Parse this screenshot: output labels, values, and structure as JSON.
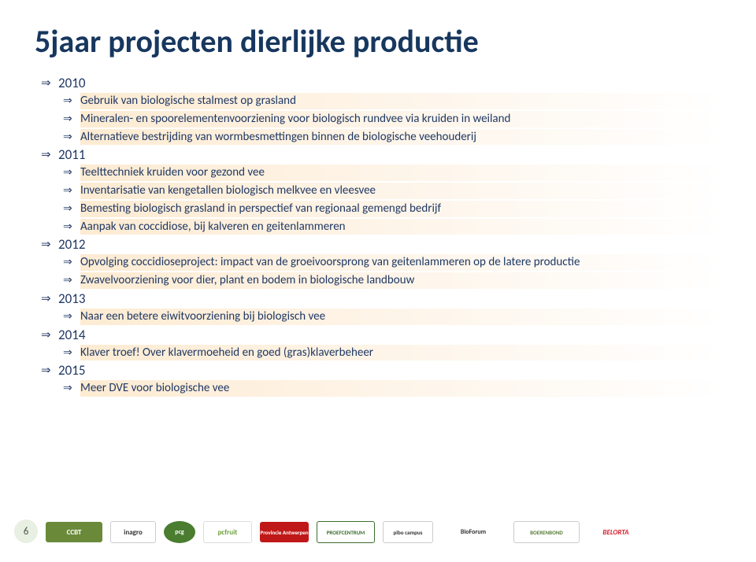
{
  "title": "5jaar projecten dierlijke productie",
  "title_color": "#17375e",
  "title_fontsize": 40,
  "text_color": "#1f3864",
  "highlight_gradient": [
    "#fdebd2",
    "#fef6ec",
    "#ffffff"
  ],
  "bullet_glyph": "⇒",
  "page_number": "6",
  "years": [
    {
      "label": "2010",
      "items": [
        "Gebruik van biologische stalmest op grasland",
        "Mineralen- en spoorelementenvoorziening voor biologisch rundvee via kruiden in weiland",
        "Alternatieve bestrijding van wormbesmettingen binnen de biologische veehouderij"
      ]
    },
    {
      "label": "2011",
      "items": [
        "Teelttechniek kruiden voor gezond vee",
        "Inventarisatie van kengetallen biologisch melkvee en vleesvee",
        "Bemesting biologisch grasland in perspectief van regionaal gemengd bedrijf",
        "Aanpak van coccidiose, bij kalveren en geitenlammeren"
      ]
    },
    {
      "label": "2012",
      "items": [
        "Opvolging coccidioseproject: impact van de groeivoorsprong van geitenlammeren op de latere productie",
        "Zwavelvoorziening voor dier, plant en bodem in biologische landbouw"
      ]
    },
    {
      "label": "2013",
      "items": [
        "Naar een betere eiwitvoorziening bij biologisch vee"
      ]
    },
    {
      "label": "2014",
      "items": [
        "Klaver troef! Over klavermoeheid en goed (gras)klaverbeheer"
      ]
    },
    {
      "label": "2015",
      "items": [
        "Meer DVE voor biologische vee"
      ]
    }
  ],
  "footer_logos": [
    {
      "name": "ccbt",
      "text": "CCBT",
      "bg": "#6a8a3a"
    },
    {
      "name": "inagro",
      "text": "inagro",
      "bg": "#ffffff"
    },
    {
      "name": "pcg",
      "text": "pcg",
      "bg": "#4a7d2f"
    },
    {
      "name": "pcfruit",
      "text": "pcfruit",
      "bg": "#ffffff"
    },
    {
      "name": "antwerp",
      "text": "Provincie Antwerpen",
      "bg": "#c01818"
    },
    {
      "name": "proef",
      "text": "PROEFCENTRUM",
      "bg": "#ffffff"
    },
    {
      "name": "pibo",
      "text": "pibo campus",
      "bg": "#ffffff"
    },
    {
      "name": "bioforum",
      "text": "BioForum",
      "bg": "#ffffff"
    },
    {
      "name": "boeren",
      "text": "BOERENBOND",
      "bg": "#ffffff"
    },
    {
      "name": "belorta",
      "text": "BELORTA",
      "bg": "#ffffff"
    }
  ]
}
